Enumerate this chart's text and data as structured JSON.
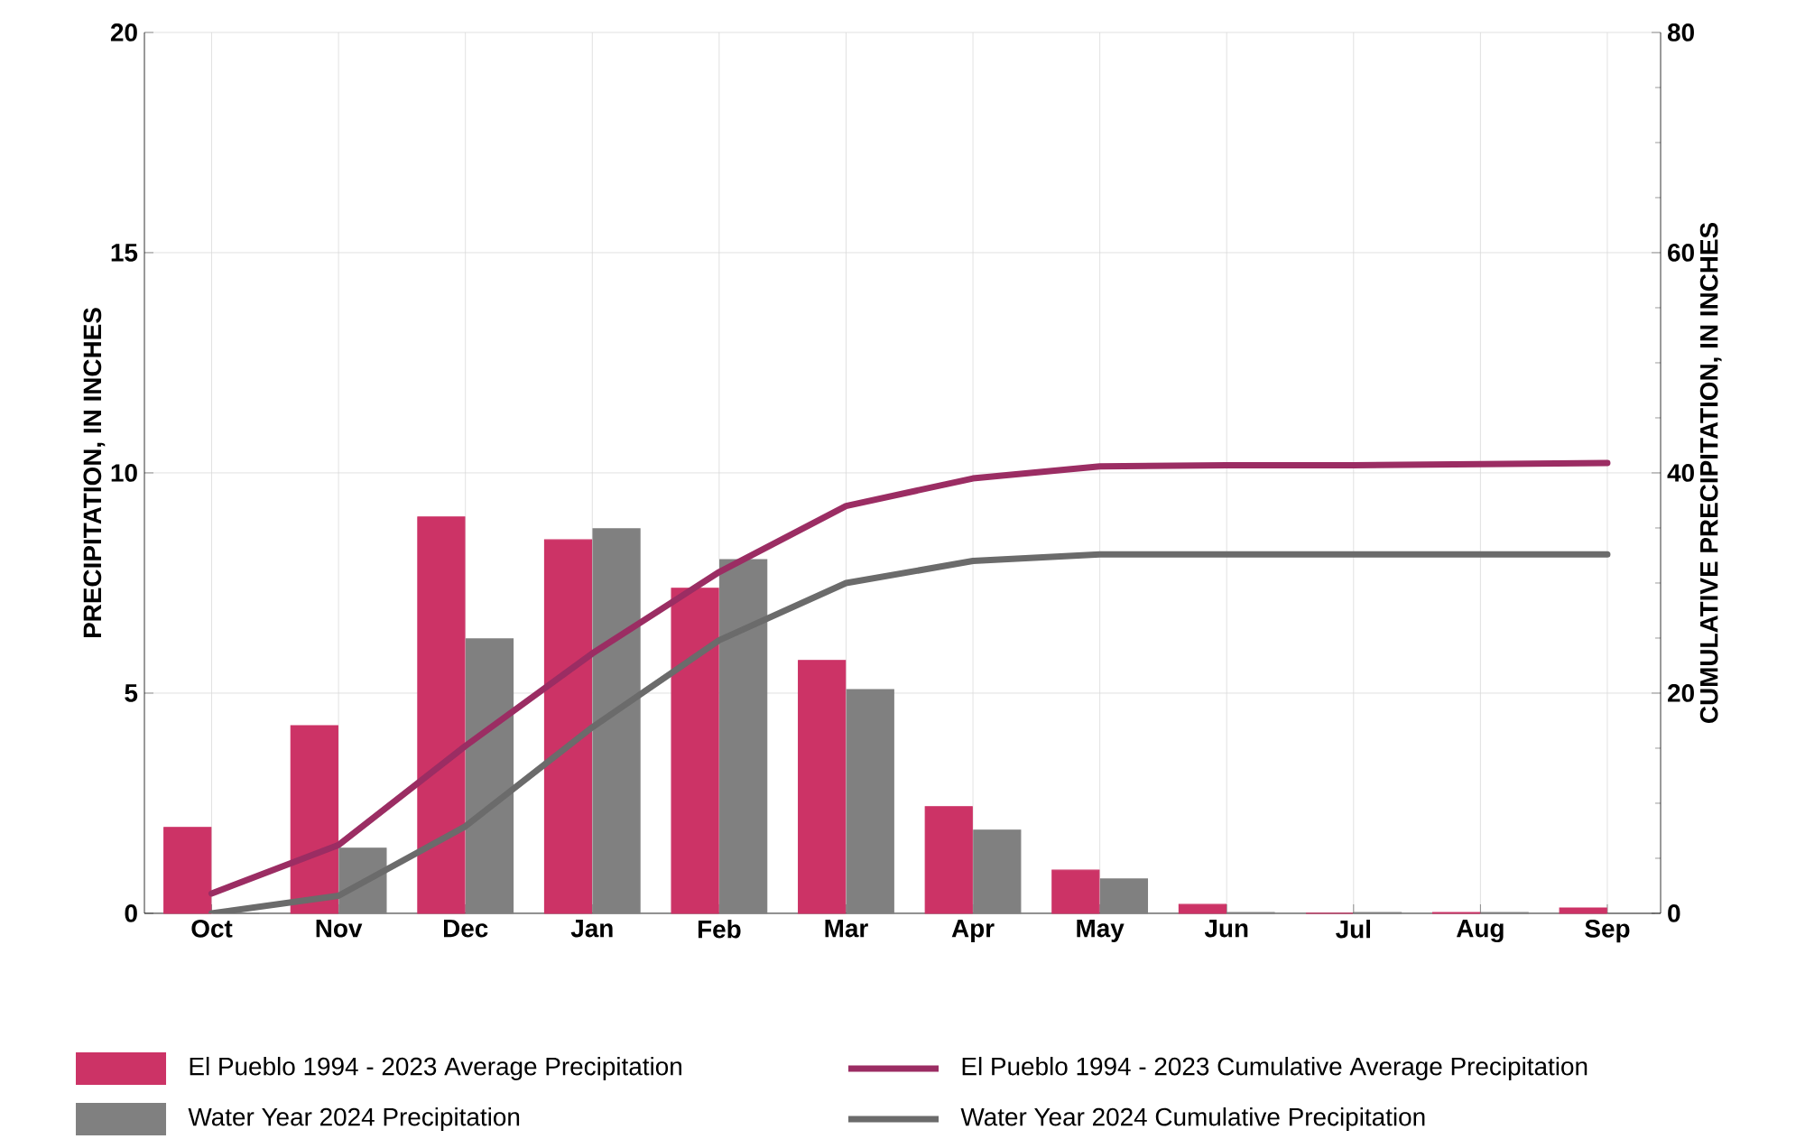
{
  "chart_data": {
    "type": "bar",
    "ylabel": "PRECIPITATION, IN INCHES",
    "y2label": "CUMULATIVE PRECIPITATION, IN INCHES",
    "categories": [
      "Oct",
      "Nov",
      "Dec",
      "Jan",
      "Feb",
      "Mar",
      "Apr",
      "May",
      "Jun",
      "Jul",
      "Aug",
      "Sep"
    ],
    "series": [
      {
        "name": "El Pueblo 1994 - 2023 Average Precipitation",
        "color": "#cc3366",
        "values": [
          1.95,
          4.26,
          9.0,
          8.48,
          7.38,
          5.74,
          2.42,
          0.98,
          0.2,
          0,
          0.02,
          0.12
        ]
      },
      {
        "name": "Water Year 2024 Precipitation",
        "color": "#808080",
        "values": [
          0,
          1.48,
          6.23,
          8.73,
          8.03,
          5.08,
          1.89,
          0.78,
          0.02,
          0.02,
          0.02,
          0
        ]
      },
      {
        "name": "El Pueblo 1994 - 2023 Cumulative Average Precipitation",
        "type": "line",
        "axis": "y2",
        "color": "#9b2d63",
        "values": [
          1.8,
          6.2,
          15.2,
          23.6,
          31.0,
          37.0,
          39.5,
          40.6,
          40.7,
          40.7,
          40.8,
          40.9
        ]
      },
      {
        "name": "Water Year 2024 Cumulative Precipitation",
        "type": "line",
        "axis": "y2",
        "color": "#6b6b6b",
        "values": [
          0,
          1.6,
          7.9,
          16.9,
          24.8,
          30.0,
          32.0,
          32.6,
          32.6,
          32.6,
          32.6,
          32.6
        ]
      }
    ],
    "ylim": [
      0,
      20
    ],
    "yticks": [
      0,
      5,
      10,
      15,
      20
    ],
    "y2lim": [
      0,
      80
    ],
    "y2ticks": [
      0,
      20,
      40,
      60,
      80
    ],
    "grid": true,
    "legend": "bottom"
  }
}
